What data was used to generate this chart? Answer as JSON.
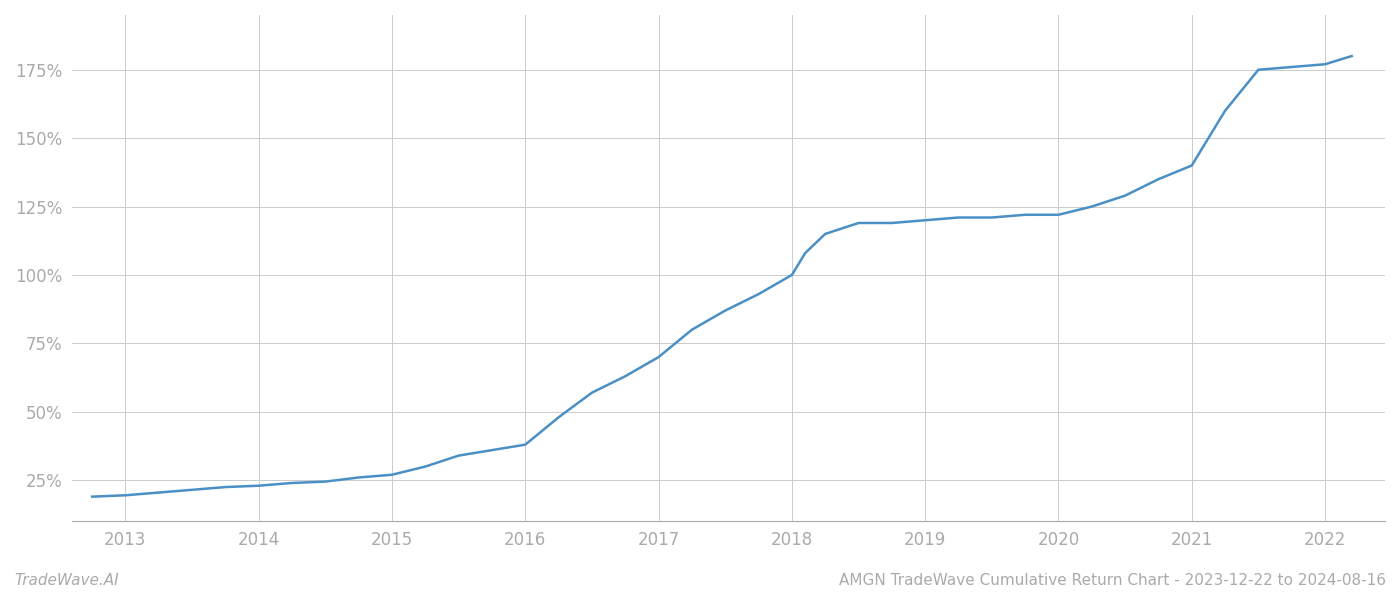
{
  "title": "AMGN TradeWave Cumulative Return Chart - 2023-12-22 to 2024-08-16",
  "watermark": "TradeWave.AI",
  "line_color": "#4a90c4",
  "background_color": "#ffffff",
  "grid_color": "#cccccc",
  "x_years": [
    2013,
    2014,
    2015,
    2016,
    2017,
    2018,
    2019,
    2020,
    2021,
    2022
  ],
  "x_values": [
    2012.75,
    2013.0,
    2013.25,
    2013.5,
    2013.75,
    2014.0,
    2014.25,
    2014.5,
    2014.75,
    2015.0,
    2015.25,
    2015.5,
    2015.75,
    2016.0,
    2016.1,
    2016.25,
    2016.5,
    2016.75,
    2017.0,
    2017.25,
    2017.5,
    2017.75,
    2018.0,
    2018.1,
    2018.25,
    2018.5,
    2018.75,
    2019.0,
    2019.25,
    2019.5,
    2019.75,
    2020.0,
    2020.25,
    2020.5,
    2020.75,
    2021.0,
    2021.1,
    2021.25,
    2021.5,
    2021.75,
    2022.0,
    2022.2
  ],
  "y_values": [
    19,
    19.5,
    20.5,
    21.5,
    22.5,
    23,
    24,
    24.5,
    26,
    27,
    30,
    34,
    36,
    38,
    42,
    48,
    57,
    63,
    70,
    80,
    87,
    93,
    100,
    108,
    115,
    119,
    119,
    120,
    121,
    121,
    122,
    122,
    125,
    129,
    135,
    140,
    148,
    160,
    175,
    176,
    177,
    180
  ],
  "yticks": [
    25,
    50,
    75,
    100,
    125,
    150,
    175
  ],
  "ylim": [
    10,
    195
  ],
  "xlim": [
    2012.6,
    2022.45
  ],
  "title_fontsize": 11,
  "watermark_fontsize": 11,
  "tick_fontsize": 12,
  "tick_color": "#aaaaaa",
  "axis_color": "#aaaaaa",
  "line_width": 1.8
}
